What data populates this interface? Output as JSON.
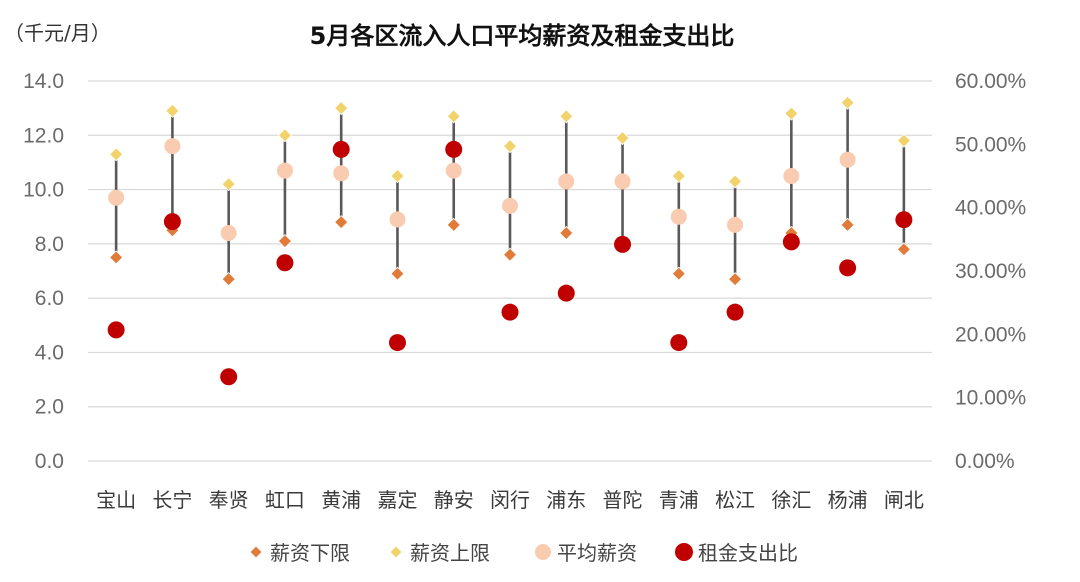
{
  "chart_data": {
    "type": "scatter",
    "title": "5月各区流入人口平均薪资及租金支出比",
    "left_unit": "（千元/月）",
    "categories": [
      "宝山",
      "长宁",
      "奉贤",
      "虹口",
      "黄浦",
      "嘉定",
      "静安",
      "闵行",
      "浦东",
      "普陀",
      "青浦",
      "松江",
      "徐汇",
      "杨浦",
      "闸北"
    ],
    "left_axis": {
      "min": 0,
      "max": 14,
      "step": 2,
      "ticks": [
        "0.0",
        "2.0",
        "4.0",
        "6.0",
        "8.0",
        "10.0",
        "12.0",
        "14.0"
      ]
    },
    "right_axis": {
      "min": 0,
      "max": 0.6,
      "step": 0.1,
      "ticks": [
        "0.00%",
        "10.00%",
        "20.00%",
        "30.00%",
        "40.00%",
        "50.00%",
        "60.00%"
      ]
    },
    "grid": true,
    "legend_position": "bottom",
    "series": [
      {
        "name": "薪资下限",
        "axis": "left",
        "marker": "diamond",
        "color": "#e07b39",
        "values": [
          7.5,
          8.5,
          6.7,
          8.1,
          8.8,
          6.9,
          8.7,
          7.6,
          8.4,
          8.0,
          6.9,
          6.7,
          8.4,
          8.7,
          7.8
        ]
      },
      {
        "name": "薪资上限",
        "axis": "left",
        "marker": "diamond",
        "color": "#f2d36b",
        "values": [
          11.3,
          12.9,
          10.2,
          12.0,
          13.0,
          10.5,
          12.7,
          11.6,
          12.7,
          11.9,
          10.5,
          10.3,
          12.8,
          13.2,
          11.8
        ]
      },
      {
        "name": "平均薪资",
        "axis": "left",
        "marker": "circle",
        "color": "#f9cbb0",
        "values": [
          9.7,
          11.6,
          8.4,
          10.7,
          10.6,
          8.9,
          10.7,
          9.4,
          10.3,
          10.3,
          9.0,
          8.7,
          10.5,
          11.1,
          8.9
        ]
      },
      {
        "name": "租金支出比",
        "axis": "right",
        "marker": "circle",
        "color": "#c00000",
        "values": [
          0.207,
          0.378,
          0.133,
          0.313,
          0.492,
          0.187,
          0.492,
          0.235,
          0.265,
          0.342,
          0.187,
          0.235,
          0.346,
          0.305,
          0.381
        ]
      }
    ]
  },
  "colors": {
    "grid": "#d9d9d9",
    "range_line": "#595959"
  }
}
